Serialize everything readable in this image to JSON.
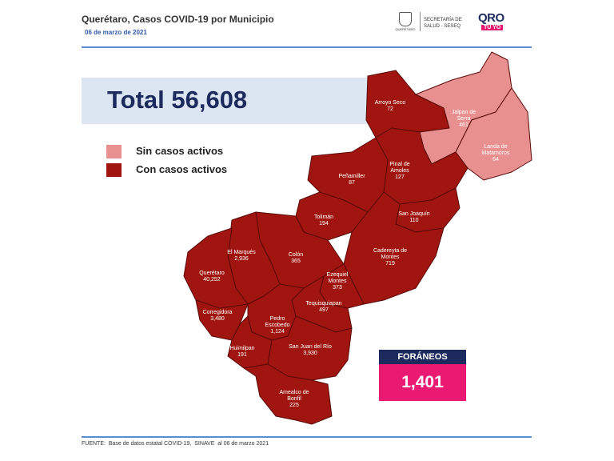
{
  "header": {
    "title": "Querétaro, Casos COVID-19 por Municipio",
    "date": "06 de marzo de 2021",
    "state_crest": "QUERÉTARO",
    "secretaria": "SECRETARÍA DE SALUD - SESEQ",
    "logo_qro": "QRO",
    "logo_tuyo": "TÚ YO"
  },
  "total": "Total 56,608",
  "legend": [
    {
      "label": "Sin casos activos",
      "color": "#e8908f"
    },
    {
      "label": "Con casos activos",
      "color": "#a0150f"
    }
  ],
  "municipalities": [
    {
      "name": "Arroyo Seco",
      "cases": "72",
      "active": true
    },
    {
      "name": "Jalpan de Serra",
      "cases": "461",
      "active": false
    },
    {
      "name": "Landa de Matamoros",
      "cases": "64",
      "active": false
    },
    {
      "name": "Pinal de Amoles",
      "cases": "127",
      "active": true
    },
    {
      "name": "Peñamiller",
      "cases": "87",
      "active": true
    },
    {
      "name": "San Joaquín",
      "cases": "110",
      "active": true
    },
    {
      "name": "Tolimán",
      "cases": "194",
      "active": true
    },
    {
      "name": "Cadereyta de Montes",
      "cases": "719",
      "active": true
    },
    {
      "name": "Colón",
      "cases": "365",
      "active": true
    },
    {
      "name": "El Marqués",
      "cases": "2,936",
      "active": true
    },
    {
      "name": "Querétaro",
      "cases": "40,252",
      "active": true
    },
    {
      "name": "Ezequiel Montes",
      "cases": "373",
      "active": true
    },
    {
      "name": "Tequisquiapan",
      "cases": "497",
      "active": true
    },
    {
      "name": "Corregidora",
      "cases": "3,480",
      "active": true
    },
    {
      "name": "Pedro Escobedo",
      "cases": "1,124",
      "active": true
    },
    {
      "name": "Huimilpan",
      "cases": "191",
      "active": true
    },
    {
      "name": "San Juan del Río",
      "cases": "3,930",
      "active": true
    },
    {
      "name": "Amealco de Bonfil",
      "cases": "225",
      "active": true
    }
  ],
  "foraneos": {
    "label": "FORÁNEOS",
    "value": "1,401"
  },
  "footer": "FUENTE:  Base de datos estatal COVID-19,  SINAVE  al 06 de marzo 2021"
}
